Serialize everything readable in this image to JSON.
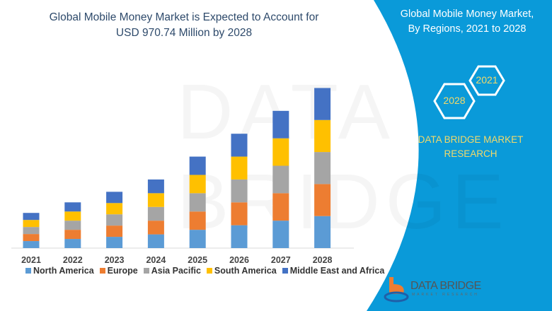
{
  "header": {
    "title_line1": "Global Mobile Money Market is Expected to Account for",
    "title_line2": "USD 970.74 Million by 2028"
  },
  "side": {
    "title_line1": "Global Mobile Money Market,",
    "title_line2": "By Regions, 2021 to 2028",
    "hex_a": "2021",
    "hex_b": "2028",
    "brand_line1": "DATA BRIDGE MARKET",
    "brand_line2": "RESEARCH",
    "logo_text": "DATA BRIDGE",
    "logo_sub": "MARKET RESEARCH",
    "panel_color": "#0a9ad9"
  },
  "chart_data": {
    "type": "bar",
    "stacked": true,
    "categories": [
      "2021",
      "2022",
      "2023",
      "2024",
      "2025",
      "2026",
      "2027",
      "2028"
    ],
    "series": [
      {
        "name": "North America",
        "color": "#5b9bd5",
        "values": [
          10,
          13,
          16,
          19.5,
          26,
          32.5,
          39,
          45.5
        ]
      },
      {
        "name": "Europe",
        "color": "#ed7d31",
        "values": [
          10,
          13,
          16,
          19.5,
          26,
          32.5,
          39,
          45.5
        ]
      },
      {
        "name": "Asia Pacific",
        "color": "#a5a5a5",
        "values": [
          10,
          13,
          16,
          19.5,
          26,
          32.5,
          39,
          45.5
        ]
      },
      {
        "name": "South America",
        "color": "#ffc000",
        "values": [
          10,
          13,
          16,
          19.5,
          26,
          32.5,
          39,
          45.5
        ]
      },
      {
        "name": "Middle East and Africa",
        "color": "#4472c4",
        "values": [
          10,
          13,
          16,
          19.5,
          26,
          32.5,
          39,
          45.5
        ]
      }
    ],
    "ylim": [
      0,
      230
    ],
    "grid": false,
    "legend": "bottom",
    "title": "",
    "xlabel": "",
    "ylabel": ""
  }
}
